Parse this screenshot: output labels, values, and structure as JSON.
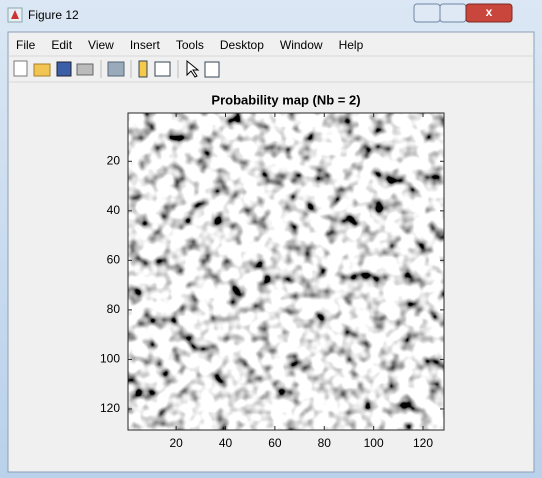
{
  "window": {
    "title": "Figure 12"
  },
  "menu": [
    "File",
    "Edit",
    "View",
    "Insert",
    "Tools",
    "Desktop",
    "Window",
    "Help"
  ],
  "chart_data": {
    "type": "image",
    "title": "Probability map (Nb = 2)",
    "colormap": "gray",
    "xlim": [
      0.5,
      128.5
    ],
    "ylim": [
      0.5,
      128.5
    ],
    "y_reversed": true,
    "xticks": [
      20,
      40,
      60,
      80,
      100,
      120
    ],
    "yticks": [
      20,
      40,
      60,
      80,
      100,
      120
    ]
  }
}
